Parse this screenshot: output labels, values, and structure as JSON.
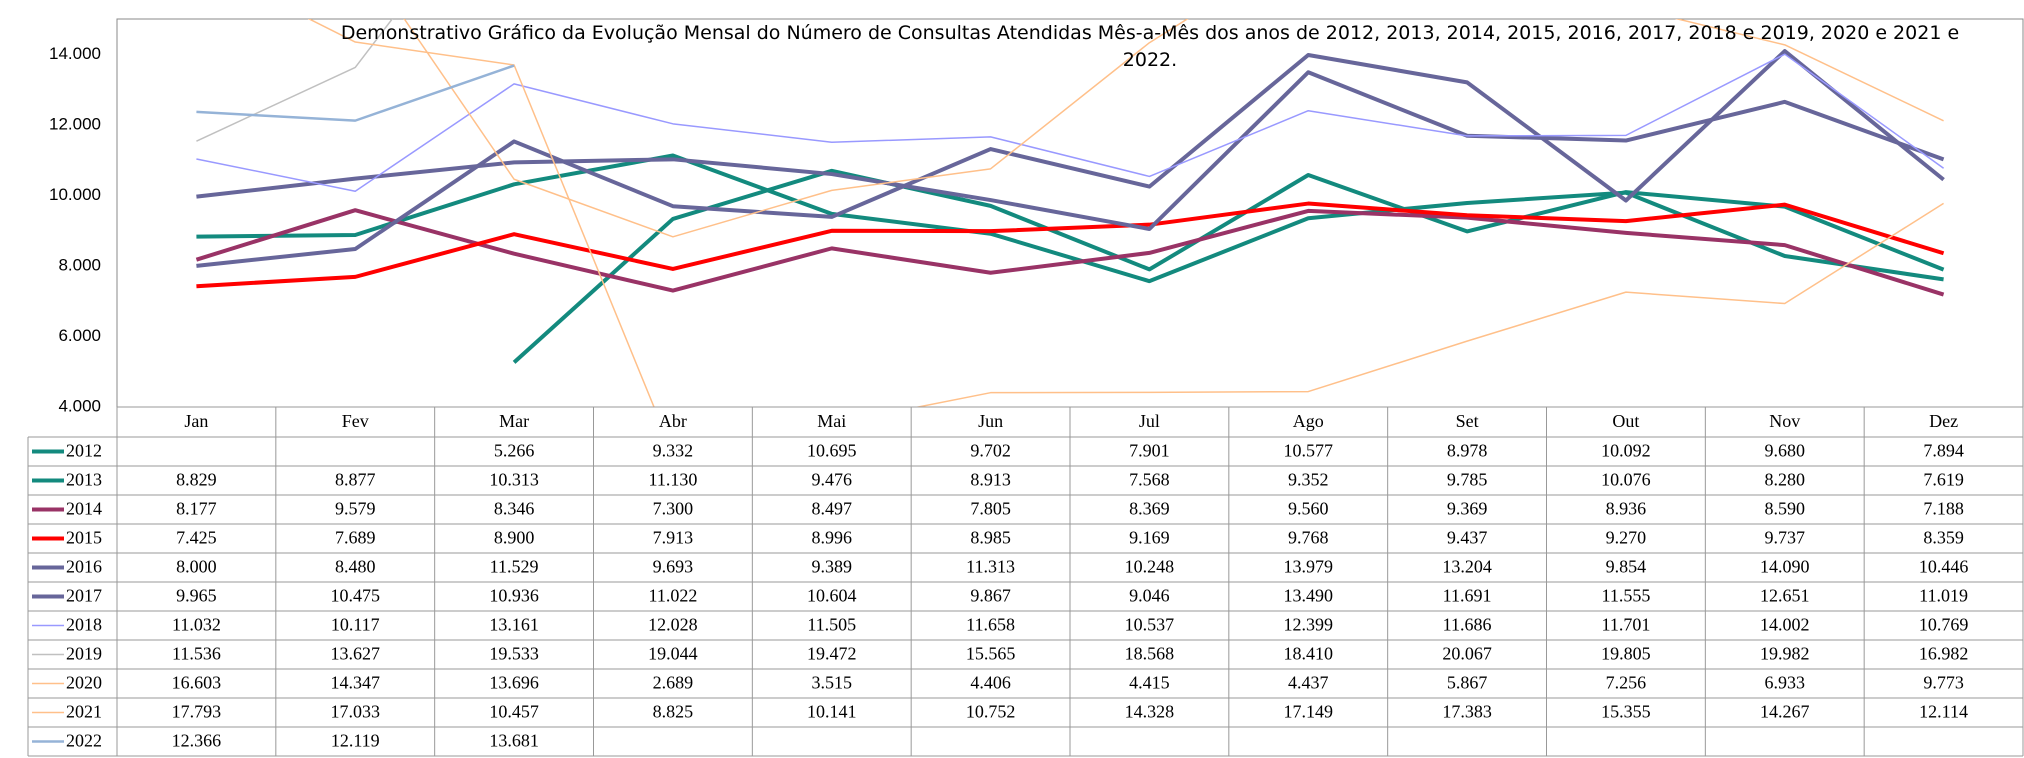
{
  "chart_data": {
    "type": "line",
    "title": "Demonstrativo Gráfico da Evolução Mensal do Número de Consultas Atendidas Mês-a-Mês dos anos de  2012, 2013, 2014, 2015, 2016, 2017, 2018 e 2019, 2020 e 2021 e 2022.",
    "categories": [
      "Jan",
      "Fev",
      "Mar",
      "Abr",
      "Mai",
      "Jun",
      "Jul",
      "Ago",
      "Set",
      "Out",
      "Nov",
      "Dez"
    ],
    "ylim": [
      4000,
      15000
    ],
    "yticks": [
      {
        "value": 4000,
        "label": "4.000"
      },
      {
        "value": 6000,
        "label": "6.000"
      },
      {
        "value": 8000,
        "label": "8.000"
      },
      {
        "value": 10000,
        "label": "10.000"
      },
      {
        "value": 12000,
        "label": "12.000"
      },
      {
        "value": 14000,
        "label": "14.000"
      }
    ],
    "grid": false,
    "series": [
      {
        "name": "2012",
        "color": "#138a7e",
        "width": 4,
        "values": [
          null,
          null,
          5266,
          9332,
          10695,
          9702,
          7901,
          10577,
          8978,
          10092,
          9680,
          7894
        ],
        "value_labels": [
          null,
          null,
          "5.266",
          "9.332",
          "10.695",
          "9.702",
          "7.901",
          "10.577",
          "8.978",
          "10.092",
          "9.680",
          "7.894"
        ]
      },
      {
        "name": "2013",
        "color": "#138a7e",
        "width": 4,
        "values": [
          8829,
          8877,
          10313,
          11130,
          9476,
          8913,
          7568,
          9352,
          9785,
          10076,
          8280,
          7619
        ],
        "value_labels": [
          "8.829",
          "8.877",
          "10.313",
          "11.130",
          "9.476",
          "8.913",
          "7.568",
          "9.352",
          "9.785",
          "10.076",
          "8.280",
          "7.619"
        ]
      },
      {
        "name": "2014",
        "color": "#993366",
        "width": 4,
        "values": [
          8177,
          9579,
          8346,
          7300,
          8497,
          7805,
          8369,
          9560,
          9369,
          8936,
          8590,
          7188
        ],
        "value_labels": [
          "8.177",
          "9.579",
          "8.346",
          "7.300",
          "8.497",
          "7.805",
          "8.369",
          "9.560",
          "9.369",
          "8.936",
          "8.590",
          "7.188"
        ]
      },
      {
        "name": "2015",
        "color": "#ff0000",
        "width": 4,
        "values": [
          7425,
          7689,
          8900,
          7913,
          8996,
          8985,
          9169,
          9768,
          9437,
          9270,
          9737,
          8359
        ],
        "value_labels": [
          "7.425",
          "7.689",
          "8.900",
          "7.913",
          "8.996",
          "8.985",
          "9.169",
          "9.768",
          "9.437",
          "9.270",
          "9.737",
          "8.359"
        ]
      },
      {
        "name": "2016",
        "color": "#67669a",
        "width": 4,
        "values": [
          8000,
          8480,
          11529,
          9693,
          9389,
          11313,
          10248,
          13979,
          13204,
          9854,
          14090,
          10446
        ],
        "value_labels": [
          "8.000",
          "8.480",
          "11.529",
          "9.693",
          "9.389",
          "11.313",
          "10.248",
          "13.979",
          "13.204",
          "9.854",
          "14.090",
          "10.446"
        ]
      },
      {
        "name": "2017",
        "color": "#67669a",
        "width": 4,
        "values": [
          9965,
          10475,
          10936,
          11022,
          10604,
          9867,
          9046,
          13490,
          11691,
          11555,
          12651,
          11019
        ],
        "value_labels": [
          "9.965",
          "10.475",
          "10.936",
          "11.022",
          "10.604",
          "9.867",
          "9.046",
          "13.490",
          "11.691",
          "11.555",
          "12.651",
          "11.019"
        ]
      },
      {
        "name": "2018",
        "color": "#9999ff",
        "width": 1.5,
        "values": [
          11032,
          10117,
          13161,
          12028,
          11505,
          11658,
          10537,
          12399,
          11686,
          11701,
          14002,
          10769
        ],
        "value_labels": [
          "11.032",
          "10.117",
          "13.161",
          "12.028",
          "11.505",
          "11.658",
          "10.537",
          "12.399",
          "11.686",
          "11.701",
          "14.002",
          "10.769"
        ]
      },
      {
        "name": "2019",
        "color": "#c0c0c0",
        "width": 1.5,
        "values": [
          11536,
          13627,
          19533,
          19044,
          19472,
          15565,
          18568,
          18410,
          20067,
          19805,
          19982,
          16982
        ],
        "value_labels": [
          "11.536",
          "13.627",
          "19.533",
          "19.044",
          "19.472",
          "15.565",
          "18.568",
          "18.410",
          "20.067",
          "19.805",
          "19.982",
          "16.982"
        ]
      },
      {
        "name": "2020",
        "color": "#ffc08a",
        "width": 1.5,
        "values": [
          16603,
          14347,
          13696,
          2689,
          3515,
          4406,
          4415,
          4437,
          5867,
          7256,
          6933,
          9773
        ],
        "value_labels": [
          "16.603",
          "14.347",
          "13.696",
          "2.689",
          "3.515",
          "4.406",
          "4.415",
          "4.437",
          "5.867",
          "7.256",
          "6.933",
          "9.773"
        ]
      },
      {
        "name": "2021",
        "color": "#ffc08a",
        "width": 1.5,
        "values": [
          17793,
          17033,
          10457,
          8825,
          10141,
          10752,
          14328,
          17149,
          17383,
          15355,
          14267,
          12114
        ],
        "value_labels": [
          "17.793",
          "17.033",
          "10.457",
          "8.825",
          "10.141",
          "10.752",
          "14.328",
          "17.149",
          "17.383",
          "15.355",
          "14.267",
          "12.114"
        ]
      },
      {
        "name": "2022",
        "color": "#95b3d7",
        "width": 2.5,
        "values": [
          12366,
          12119,
          13681,
          null,
          null,
          null,
          null,
          null,
          null,
          null,
          null,
          null
        ],
        "value_labels": [
          "12.366",
          "12.119",
          "13.681",
          null,
          null,
          null,
          null,
          null,
          null,
          null,
          null,
          null
        ]
      }
    ]
  }
}
